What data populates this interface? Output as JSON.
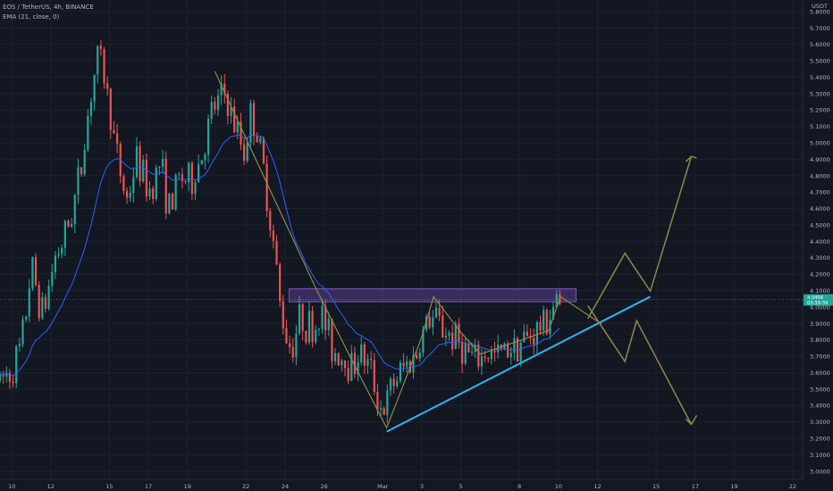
{
  "header": {
    "title": "EOS / TetherUS, 4h, BINANCE",
    "indicator": "EMA (21, close, 0)"
  },
  "chart_data": {
    "type": "candlestick",
    "currency": "USDT",
    "y_ticks": [
      "5.8000",
      "5.7000",
      "5.6000",
      "5.5000",
      "5.4000",
      "5.3000",
      "5.2000",
      "5.1000",
      "5.0000",
      "4.9000",
      "4.8000",
      "4.7000",
      "4.6000",
      "4.5000",
      "4.4000",
      "4.3000",
      "4.2000",
      "4.1000",
      "4.0000",
      "3.9000",
      "3.8000",
      "3.7000",
      "3.6000",
      "3.5000",
      "3.4000",
      "3.3000",
      "3.2000",
      "3.1000",
      "3.0000"
    ],
    "y_tick_values": [
      5.8,
      5.7,
      5.6,
      5.5,
      5.4,
      5.3,
      5.2,
      5.1,
      5.0,
      4.9,
      4.8,
      4.7,
      4.6,
      4.5,
      4.4,
      4.3,
      4.2,
      4.1,
      4.0,
      3.9,
      3.8,
      3.7,
      3.6,
      3.5,
      3.4,
      3.3,
      3.2,
      3.1,
      3.0
    ],
    "ylim": [
      2.95,
      5.87
    ],
    "x_ticks": [
      {
        "label": "10",
        "day": 10
      },
      {
        "label": "12",
        "day": 12
      },
      {
        "label": "15",
        "day": 15
      },
      {
        "label": "17",
        "day": 17
      },
      {
        "label": "19",
        "day": 19
      },
      {
        "label": "22",
        "day": 22
      },
      {
        "label": "24",
        "day": 24
      },
      {
        "label": "26",
        "day": 26
      },
      {
        "label": "Mar",
        "day": 29
      },
      {
        "label": "3",
        "day": 31
      },
      {
        "label": "5",
        "day": 33
      },
      {
        "label": "8",
        "day": 36
      },
      {
        "label": "10",
        "day": 38
      },
      {
        "label": "12",
        "day": 40
      },
      {
        "label": "15",
        "day": 43
      },
      {
        "label": "17",
        "day": 45
      },
      {
        "label": "19",
        "day": 47
      },
      {
        "label": "22",
        "day": 50
      }
    ],
    "xlim": [
      9.4,
      50.5
    ],
    "price_label": {
      "price": "4.0456",
      "countdown": "03:33:39",
      "value": 4.0456
    },
    "colors": {
      "up": "#26a69a",
      "down": "#ef5350",
      "ema": "#2962ff",
      "trendline": "#29b6f6",
      "projection": "#8d8a48",
      "zone": "#7e57c2"
    },
    "resistance_zone": {
      "from_day": 24.2,
      "to_day": 38.9,
      "low": 4.0321,
      "high": 4.1117
    },
    "trendline": [
      {
        "day": 29.2,
        "price": 3.241
      },
      {
        "day": 42.7,
        "price": 4.063
      }
    ],
    "pattern_path": [
      {
        "day": 20.4,
        "price": 5.436
      },
      {
        "day": 25.6,
        "price": 4.107
      },
      {
        "day": 27.3,
        "price": 3.704
      },
      {
        "day": 29.2,
        "price": 3.264
      },
      {
        "day": 30.2,
        "price": 3.571
      },
      {
        "day": 31.0,
        "price": 3.818
      },
      {
        "day": 31.6,
        "price": 4.063
      },
      {
        "day": 33.0,
        "price": 3.846
      },
      {
        "day": 34.0,
        "price": 3.713
      },
      {
        "day": 37.5,
        "price": 3.857
      },
      {
        "day": 38.1,
        "price": 4.063
      },
      {
        "day": 40.2,
        "price": 3.896
      }
    ],
    "projection_up": [
      {
        "day": 39.5,
        "price": 3.929
      },
      {
        "day": 41.4,
        "price": 4.328
      },
      {
        "day": 42.7,
        "price": 4.096
      },
      {
        "day": 44.8,
        "price": 4.918
      }
    ],
    "projection_down": [
      {
        "day": 39.5,
        "price": 4.008
      },
      {
        "day": 41.4,
        "price": 3.668
      },
      {
        "day": 42.0,
        "price": 3.916
      },
      {
        "day": 44.8,
        "price": 3.285
      }
    ],
    "projection_arrows": [
      {
        "day": 44.8,
        "price": 4.918,
        "dir": "up"
      },
      {
        "day": 44.8,
        "price": 3.285,
        "dir": "down"
      }
    ],
    "candle_keypoints": [
      {
        "day": 9.4,
        "price": 3.55
      },
      {
        "day": 10.0,
        "price": 3.62
      },
      {
        "day": 10.5,
        "price": 3.75
      },
      {
        "day": 11.0,
        "price": 4.25
      },
      {
        "day": 11.6,
        "price": 3.95
      },
      {
        "day": 12.2,
        "price": 4.3
      },
      {
        "day": 12.8,
        "price": 4.45
      },
      {
        "day": 13.5,
        "price": 4.8
      },
      {
        "day": 14.1,
        "price": 5.35
      },
      {
        "day": 14.5,
        "price": 5.55
      },
      {
        "day": 14.9,
        "price": 5.3
      },
      {
        "day": 15.4,
        "price": 4.9
      },
      {
        "day": 15.9,
        "price": 4.65
      },
      {
        "day": 16.4,
        "price": 4.9
      },
      {
        "day": 17.0,
        "price": 4.7
      },
      {
        "day": 17.6,
        "price": 4.88
      },
      {
        "day": 18.1,
        "price": 4.58
      },
      {
        "day": 18.6,
        "price": 4.8
      },
      {
        "day": 19.2,
        "price": 4.75
      },
      {
        "day": 19.8,
        "price": 4.95
      },
      {
        "day": 20.3,
        "price": 5.2
      },
      {
        "day": 20.9,
        "price": 5.3
      },
      {
        "day": 21.4,
        "price": 5.1
      },
      {
        "day": 21.9,
        "price": 4.95
      },
      {
        "day": 22.3,
        "price": 5.2
      },
      {
        "day": 22.8,
        "price": 4.9
      },
      {
        "day": 23.3,
        "price": 4.5
      },
      {
        "day": 23.8,
        "price": 3.95
      },
      {
        "day": 24.3,
        "price": 3.75
      },
      {
        "day": 24.8,
        "price": 3.95
      },
      {
        "day": 25.4,
        "price": 3.85
      },
      {
        "day": 25.9,
        "price": 3.95
      },
      {
        "day": 26.4,
        "price": 3.75
      },
      {
        "day": 26.9,
        "price": 3.7
      },
      {
        "day": 27.4,
        "price": 3.65
      },
      {
        "day": 27.9,
        "price": 3.72
      },
      {
        "day": 28.4,
        "price": 3.6
      },
      {
        "day": 29.0,
        "price": 3.35
      },
      {
        "day": 29.6,
        "price": 3.55
      },
      {
        "day": 30.2,
        "price": 3.65
      },
      {
        "day": 30.7,
        "price": 3.7
      },
      {
        "day": 31.2,
        "price": 3.9
      },
      {
        "day": 31.7,
        "price": 3.93
      },
      {
        "day": 32.2,
        "price": 3.85
      },
      {
        "day": 32.8,
        "price": 3.8
      },
      {
        "day": 33.3,
        "price": 3.72
      },
      {
        "day": 33.8,
        "price": 3.66
      },
      {
        "day": 34.3,
        "price": 3.72
      },
      {
        "day": 34.8,
        "price": 3.7
      },
      {
        "day": 35.3,
        "price": 3.75
      },
      {
        "day": 35.8,
        "price": 3.78
      },
      {
        "day": 36.3,
        "price": 3.8
      },
      {
        "day": 36.8,
        "price": 3.85
      },
      {
        "day": 37.3,
        "price": 3.9
      },
      {
        "day": 37.8,
        "price": 4.02
      },
      {
        "day": 38.1,
        "price": 4.0
      }
    ]
  }
}
